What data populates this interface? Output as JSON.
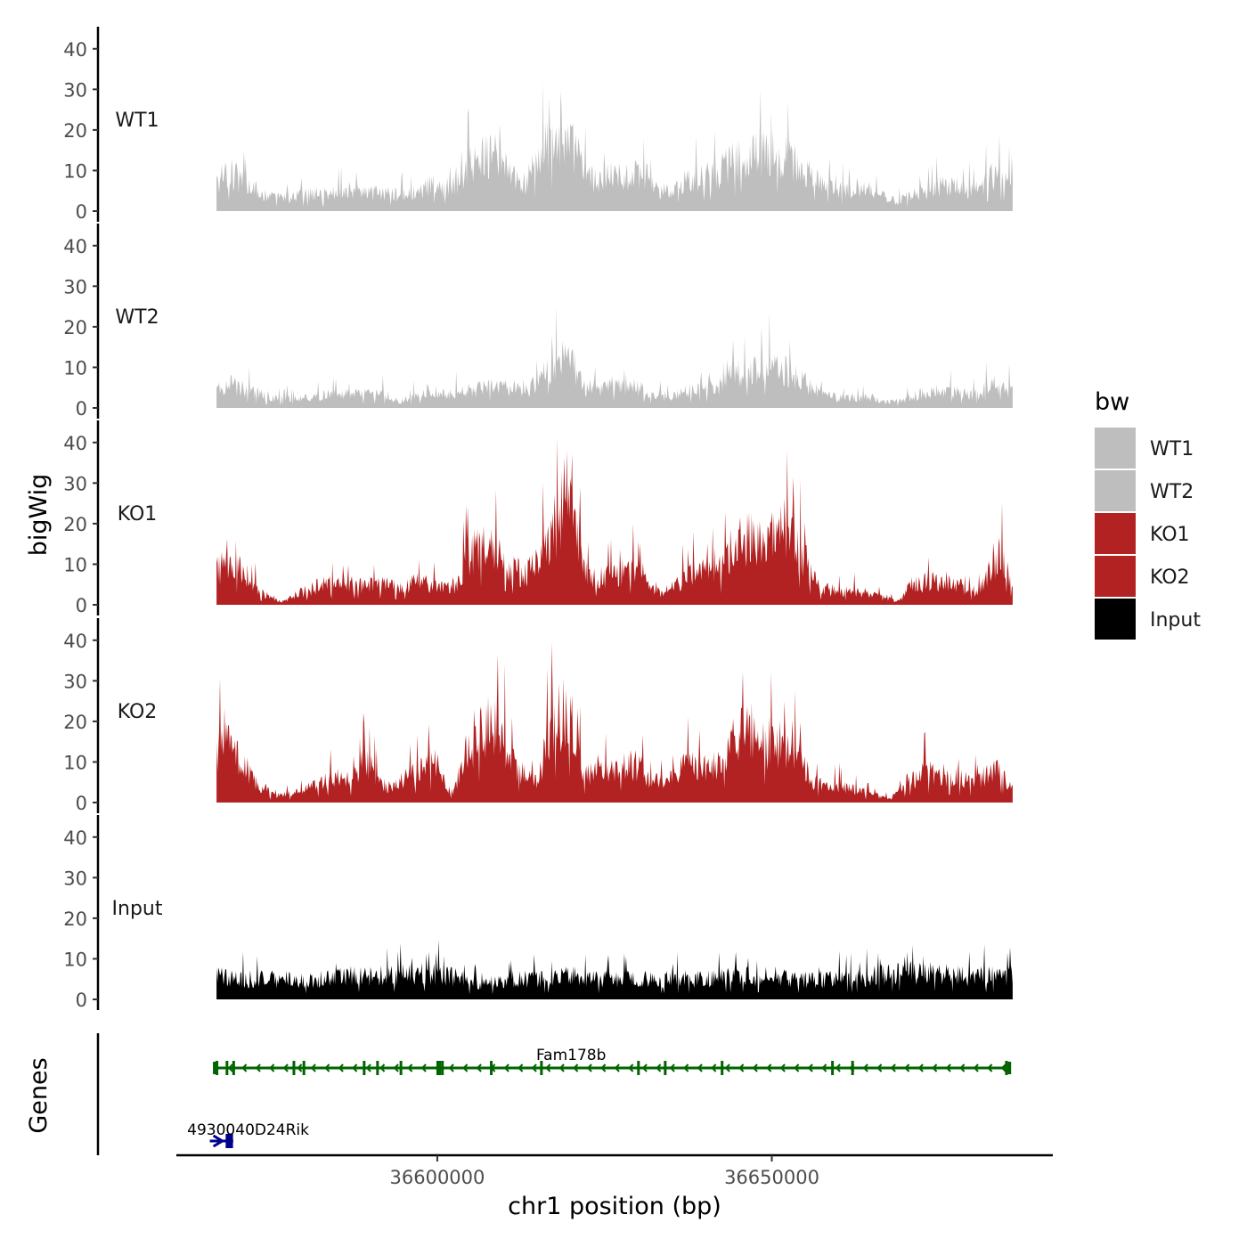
{
  "chart_data": {
    "type": "area",
    "chromosome": "chr1",
    "xlabel": "chr1 position (bp)",
    "ylabel": "bigWig",
    "genes_label": "Genes",
    "xlim": [
      36561000,
      36692000
    ],
    "data_range": [
      36567000,
      36686000
    ],
    "x_ticks": [
      36600000,
      36650000
    ],
    "x_tick_labels": [
      "36600000",
      "36650000"
    ],
    "ylim": [
      0,
      45
    ],
    "y_ticks": [
      0,
      10,
      20,
      30,
      40
    ],
    "y_tick_labels": [
      "0",
      "10",
      "20",
      "30",
      "40"
    ],
    "legend": {
      "title": "bw",
      "entries": [
        {
          "label": "WT1",
          "color": "#bebebe"
        },
        {
          "label": "WT2",
          "color": "#bebebe"
        },
        {
          "label": "KO1",
          "color": "#b22222"
        },
        {
          "label": "KO2",
          "color": "#b22222"
        },
        {
          "label": "Input",
          "color": "#000000"
        }
      ]
    },
    "series": [
      {
        "name": "WT1",
        "color": "#bebebe",
        "profile": [
          [
            36567000,
            9
          ],
          [
            36569000,
            11
          ],
          [
            36572000,
            8
          ],
          [
            36575000,
            4
          ],
          [
            36578000,
            4
          ],
          [
            36581000,
            5
          ],
          [
            36584000,
            5
          ],
          [
            36586000,
            6
          ],
          [
            36589000,
            6
          ],
          [
            36592000,
            5
          ],
          [
            36595000,
            5
          ],
          [
            36597500,
            6
          ],
          [
            36599000,
            8
          ],
          [
            36601000,
            7
          ],
          [
            36603000,
            8
          ],
          [
            36605000,
            14
          ],
          [
            36607000,
            16
          ],
          [
            36609000,
            17
          ],
          [
            36611000,
            10
          ],
          [
            36613000,
            8
          ],
          [
            36615000,
            14
          ],
          [
            36616500,
            20
          ],
          [
            36618500,
            22
          ],
          [
            36620500,
            18
          ],
          [
            36622000,
            11
          ],
          [
            36624000,
            9
          ],
          [
            36626000,
            11
          ],
          [
            36628000,
            10
          ],
          [
            36630000,
            11
          ],
          [
            36632000,
            7
          ],
          [
            36634500,
            6
          ],
          [
            36637000,
            9
          ],
          [
            36640000,
            10
          ],
          [
            36642000,
            11
          ],
          [
            36644000,
            15
          ],
          [
            36647000,
            17
          ],
          [
            36650000,
            18
          ],
          [
            36652000,
            16
          ],
          [
            36654000,
            13
          ],
          [
            36656000,
            10
          ],
          [
            36658000,
            7
          ],
          [
            36660000,
            6
          ],
          [
            36663000,
            7
          ],
          [
            36665000,
            6
          ],
          [
            36667000,
            4
          ],
          [
            36669000,
            3
          ],
          [
            36672000,
            6
          ],
          [
            36675000,
            7
          ],
          [
            36677000,
            8
          ],
          [
            36679000,
            6
          ],
          [
            36681000,
            7
          ],
          [
            36683000,
            11
          ],
          [
            36685000,
            9
          ],
          [
            36686000,
            8
          ]
        ]
      },
      {
        "name": "WT2",
        "color": "#bebebe",
        "profile": [
          [
            36567000,
            5
          ],
          [
            36569000,
            7
          ],
          [
            36572000,
            5
          ],
          [
            36575000,
            3
          ],
          [
            36578000,
            3
          ],
          [
            36581000,
            3
          ],
          [
            36584000,
            4
          ],
          [
            36586000,
            4
          ],
          [
            36589000,
            4
          ],
          [
            36592000,
            4
          ],
          [
            36594500,
            2
          ],
          [
            36597000,
            4
          ],
          [
            36599000,
            5
          ],
          [
            36601000,
            4
          ],
          [
            36603000,
            5
          ],
          [
            36605000,
            5
          ],
          [
            36607000,
            6
          ],
          [
            36609000,
            6
          ],
          [
            36611000,
            6
          ],
          [
            36613000,
            6
          ],
          [
            36615000,
            7
          ],
          [
            36616500,
            12
          ],
          [
            36618500,
            14
          ],
          [
            36620500,
            12
          ],
          [
            36622000,
            6
          ],
          [
            36624000,
            6
          ],
          [
            36626000,
            7
          ],
          [
            36628000,
            6
          ],
          [
            36630000,
            6
          ],
          [
            36632000,
            4
          ],
          [
            36634500,
            3
          ],
          [
            36637000,
            5
          ],
          [
            36640000,
            6
          ],
          [
            36642000,
            6
          ],
          [
            36644000,
            10
          ],
          [
            36647000,
            11
          ],
          [
            36650000,
            12
          ],
          [
            36652000,
            11
          ],
          [
            36654000,
            9
          ],
          [
            36656000,
            6
          ],
          [
            36658000,
            4
          ],
          [
            36660000,
            3
          ],
          [
            36663000,
            3
          ],
          [
            36665000,
            3
          ],
          [
            36667000,
            2
          ],
          [
            36669000,
            2
          ],
          [
            36672000,
            4
          ],
          [
            36675000,
            5
          ],
          [
            36677000,
            5
          ],
          [
            36679000,
            4
          ],
          [
            36681000,
            4
          ],
          [
            36683000,
            8
          ],
          [
            36685000,
            6
          ],
          [
            36686000,
            5
          ]
        ]
      },
      {
        "name": "KO1",
        "color": "#b22222",
        "profile": [
          [
            36567000,
            10
          ],
          [
            36569000,
            13
          ],
          [
            36571000,
            10
          ],
          [
            36573000,
            5
          ],
          [
            36575000,
            2
          ],
          [
            36577000,
            1
          ],
          [
            36580000,
            4
          ],
          [
            36583000,
            6
          ],
          [
            36586000,
            6
          ],
          [
            36589000,
            6
          ],
          [
            36592000,
            6
          ],
          [
            36595000,
            5
          ],
          [
            36597000,
            7
          ],
          [
            36599000,
            6
          ],
          [
            36601000,
            5
          ],
          [
            36603000,
            6
          ],
          [
            36604500,
            14
          ],
          [
            36607000,
            18
          ],
          [
            36609000,
            17
          ],
          [
            36611000,
            11
          ],
          [
            36613000,
            9
          ],
          [
            36615000,
            12
          ],
          [
            36616500,
            18
          ],
          [
            36618500,
            28
          ],
          [
            36619500,
            33
          ],
          [
            36620500,
            26
          ],
          [
            36622000,
            9
          ],
          [
            36624000,
            8
          ],
          [
            36626000,
            9
          ],
          [
            36628000,
            10
          ],
          [
            36630000,
            11
          ],
          [
            36632000,
            6
          ],
          [
            36634000,
            3
          ],
          [
            36636000,
            7
          ],
          [
            36638000,
            9
          ],
          [
            36640000,
            10
          ],
          [
            36642000,
            10
          ],
          [
            36644000,
            17
          ],
          [
            36646000,
            20
          ],
          [
            36648000,
            18
          ],
          [
            36650000,
            20
          ],
          [
            36651500,
            23
          ],
          [
            36653000,
            21
          ],
          [
            36655000,
            13
          ],
          [
            36657000,
            5
          ],
          [
            36660000,
            4
          ],
          [
            36663000,
            4
          ],
          [
            36665000,
            3
          ],
          [
            36667000,
            2
          ],
          [
            36669000,
            1
          ],
          [
            36671000,
            6
          ],
          [
            36674000,
            7
          ],
          [
            36677000,
            6
          ],
          [
            36679000,
            5
          ],
          [
            36681000,
            4
          ],
          [
            36683000,
            13
          ],
          [
            36684500,
            15
          ],
          [
            36686000,
            6
          ]
        ]
      },
      {
        "name": "KO2",
        "color": "#b22222",
        "profile": [
          [
            36567000,
            14
          ],
          [
            36568000,
            20
          ],
          [
            36570000,
            16
          ],
          [
            36572000,
            9
          ],
          [
            36574000,
            4
          ],
          [
            36576000,
            2
          ],
          [
            36579000,
            3
          ],
          [
            36582000,
            5
          ],
          [
            36585000,
            8
          ],
          [
            36587000,
            6
          ],
          [
            36589000,
            12
          ],
          [
            36591000,
            8
          ],
          [
            36593000,
            4
          ],
          [
            36596000,
            8
          ],
          [
            36599000,
            11
          ],
          [
            36601000,
            6
          ],
          [
            36602500,
            3
          ],
          [
            36604000,
            14
          ],
          [
            36606000,
            18
          ],
          [
            36607500,
            24
          ],
          [
            36609500,
            20
          ],
          [
            36611000,
            14
          ],
          [
            36613000,
            8
          ],
          [
            36615000,
            6
          ],
          [
            36616500,
            20
          ],
          [
            36618500,
            26
          ],
          [
            36620500,
            24
          ],
          [
            36622000,
            8
          ],
          [
            36624000,
            10
          ],
          [
            36626000,
            9
          ],
          [
            36628000,
            12
          ],
          [
            36630000,
            11
          ],
          [
            36632000,
            7
          ],
          [
            36634000,
            5
          ],
          [
            36636000,
            10
          ],
          [
            36638000,
            12
          ],
          [
            36640000,
            10
          ],
          [
            36642000,
            11
          ],
          [
            36644000,
            18
          ],
          [
            36646000,
            22
          ],
          [
            36648000,
            16
          ],
          [
            36650000,
            18
          ],
          [
            36652000,
            17
          ],
          [
            36654000,
            13
          ],
          [
            36656000,
            7
          ],
          [
            36658000,
            5
          ],
          [
            36660000,
            5
          ],
          [
            36662000,
            4
          ],
          [
            36664000,
            3
          ],
          [
            36666000,
            2
          ],
          [
            36668000,
            1
          ],
          [
            36670000,
            6
          ],
          [
            36673000,
            9
          ],
          [
            36676000,
            8
          ],
          [
            36678000,
            7
          ],
          [
            36680000,
            6
          ],
          [
            36682000,
            8
          ],
          [
            36684000,
            10
          ],
          [
            36686000,
            3
          ]
        ]
      },
      {
        "name": "Input",
        "color": "#000000",
        "profile": [
          [
            36567000,
            7
          ],
          [
            36572000,
            6
          ],
          [
            36577000,
            6
          ],
          [
            36582000,
            6
          ],
          [
            36587000,
            7
          ],
          [
            36592000,
            7
          ],
          [
            36597000,
            8
          ],
          [
            36602000,
            7
          ],
          [
            36606500,
            4
          ],
          [
            36610000,
            6
          ],
          [
            36615000,
            6
          ],
          [
            36620000,
            7
          ],
          [
            36625000,
            6
          ],
          [
            36630000,
            6
          ],
          [
            36635000,
            6
          ],
          [
            36640000,
            6
          ],
          [
            36645000,
            7
          ],
          [
            36650000,
            7
          ],
          [
            36655000,
            6
          ],
          [
            36660000,
            6
          ],
          [
            36665000,
            7
          ],
          [
            36670000,
            8
          ],
          [
            36675000,
            8
          ],
          [
            36680000,
            7
          ],
          [
            36686000,
            7
          ]
        ]
      }
    ],
    "genes": [
      {
        "name": "Fam178b",
        "start": 36567000,
        "end": 36685500,
        "strand": "-",
        "color": "#006400",
        "exons": [
          36567000,
          36568500,
          36569500,
          36578500,
          36580000,
          36589000,
          36591000,
          36594500,
          36600000,
          36600300,
          36600700,
          36608000,
          36615500,
          36630000,
          36634000,
          36642500,
          36659000,
          36662000,
          36685000
        ]
      },
      {
        "name": "4930040D24Rik",
        "display": "4930040D24Rik",
        "start": 36566000,
        "end": 36569500,
        "strand": "+",
        "color": "#00008b",
        "exons": [
          36568500,
          36569200
        ]
      }
    ]
  }
}
